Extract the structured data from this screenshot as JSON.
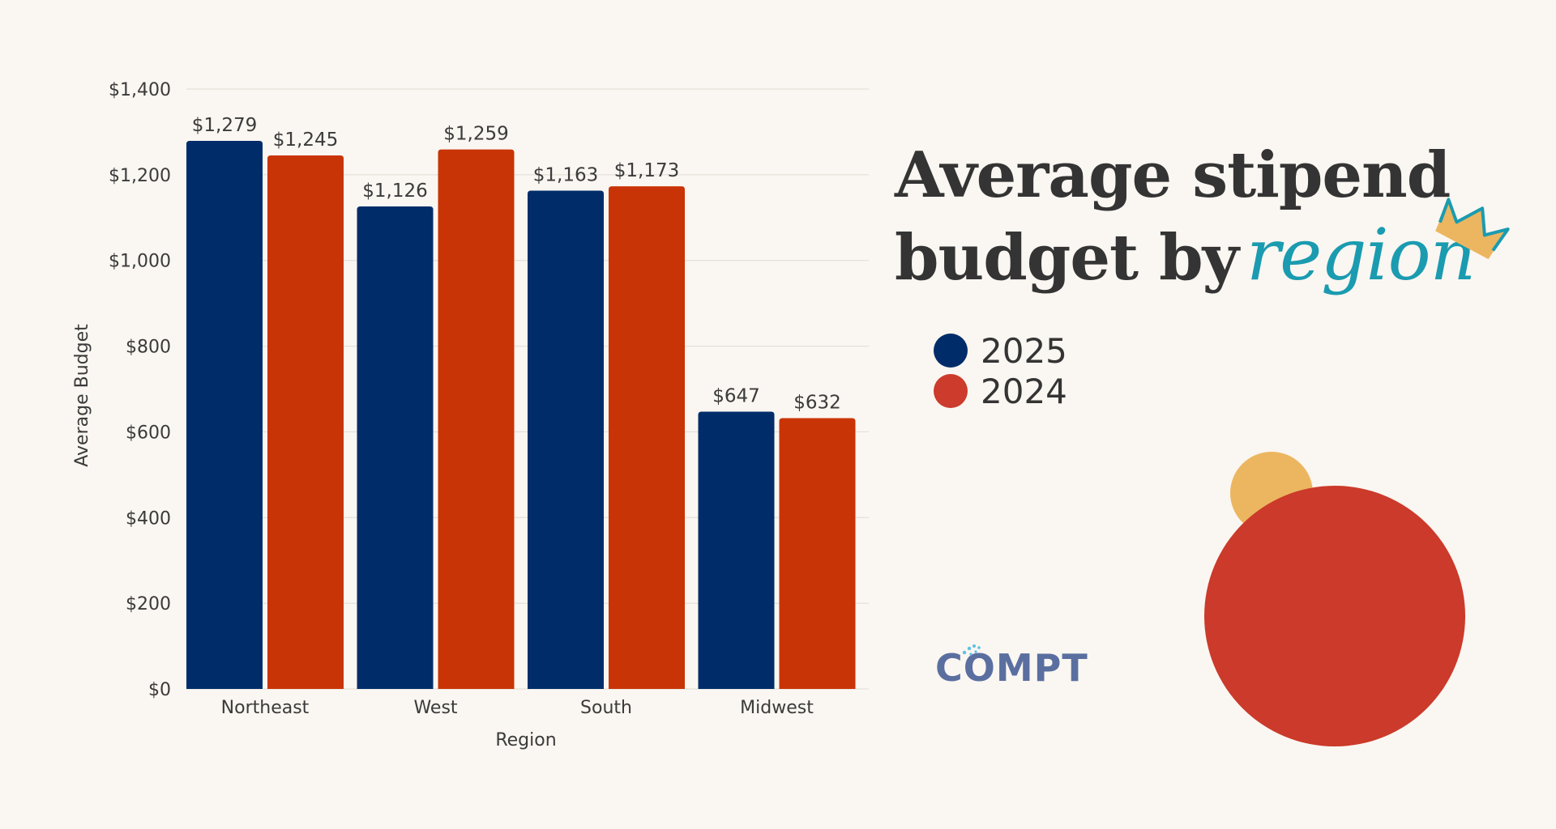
{
  "chart_data": {
    "type": "bar",
    "title": "Average stipend budget by region",
    "xlabel": "Region",
    "ylabel": "Average Budget",
    "ylim": [
      0,
      1400
    ],
    "yticks": [
      0,
      200,
      400,
      600,
      800,
      1000,
      1200,
      1400
    ],
    "ytick_labels": [
      "$0",
      "$200",
      "$400",
      "$600",
      "$800",
      "$1,000",
      "$1,200",
      "$1,400"
    ],
    "categories": [
      "Northeast",
      "West",
      "South",
      "Midwest"
    ],
    "series": [
      {
        "name": "2025",
        "color": "#002d6a",
        "values": [
          1279,
          1126,
          1163,
          647
        ],
        "labels": [
          "$1,279",
          "$1,126",
          "$1,163",
          "$647"
        ]
      },
      {
        "name": "2024",
        "color": "#c93406",
        "values": [
          1245,
          1259,
          1173,
          632
        ],
        "labels": [
          "$1,245",
          "$1,259",
          "$1,173",
          "$632"
        ]
      }
    ],
    "grid": true,
    "legend_position": "right"
  },
  "title": {
    "line1": "Average stipend",
    "line2_prefix": "budget by",
    "line2_accent": "region"
  },
  "legend": [
    {
      "label": "2025",
      "color": "#002d6a"
    },
    {
      "label": "2024",
      "color": "#cc3b2c"
    }
  ],
  "logo": {
    "text": "COMPT",
    "color": "#5a6fa0",
    "accent_color": "#5cc0e8"
  },
  "decor": {
    "small_circle_color": "#ecb660",
    "big_circle_color": "#cb3a2a",
    "crown_fill": "#ecb660",
    "crown_stroke": "#1a9bb0"
  }
}
